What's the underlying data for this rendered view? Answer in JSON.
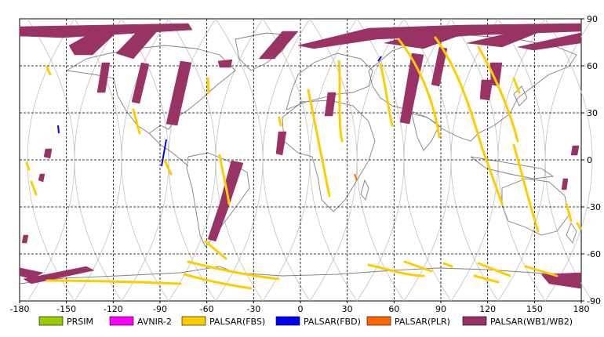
{
  "map": {
    "x_ticks": [
      "-180",
      "-150",
      "-120",
      "-90",
      "-60",
      "-30",
      "0",
      "30",
      "60",
      "90",
      "120",
      "150",
      "180"
    ],
    "y_ticks": [
      "90",
      "60",
      "30",
      "0",
      "-30",
      "-60",
      "-90"
    ],
    "x_range": [
      -180,
      180
    ],
    "y_range": [
      -90,
      90
    ],
    "grid": true,
    "grid_style": "dashed black every 30 degrees",
    "colors": {
      "prism": "#99cc00",
      "avnir2": "#ff00ff",
      "palsar_fbs": "#ffcc00",
      "palsar_fbd": "#0000ee",
      "palsar_plr": "#ff6600",
      "palsar_wb": "#993366",
      "orbit_track": "#c0c0c0",
      "coastline": "#808080"
    }
  },
  "legend": {
    "items": [
      {
        "label": "PRSIM",
        "color": "#99cc00"
      },
      {
        "label": "AVNIR-2",
        "color": "#ff00ff"
      },
      {
        "label": "PALSAR(FBS)",
        "color": "#ffcc00"
      },
      {
        "label": "PALSAR(FBD)",
        "color": "#0000ee"
      },
      {
        "label": "PALSAR(PLR)",
        "color": "#ff6600"
      },
      {
        "label": "PALSAR(WB1/WB2)",
        "color": "#993366"
      }
    ]
  }
}
